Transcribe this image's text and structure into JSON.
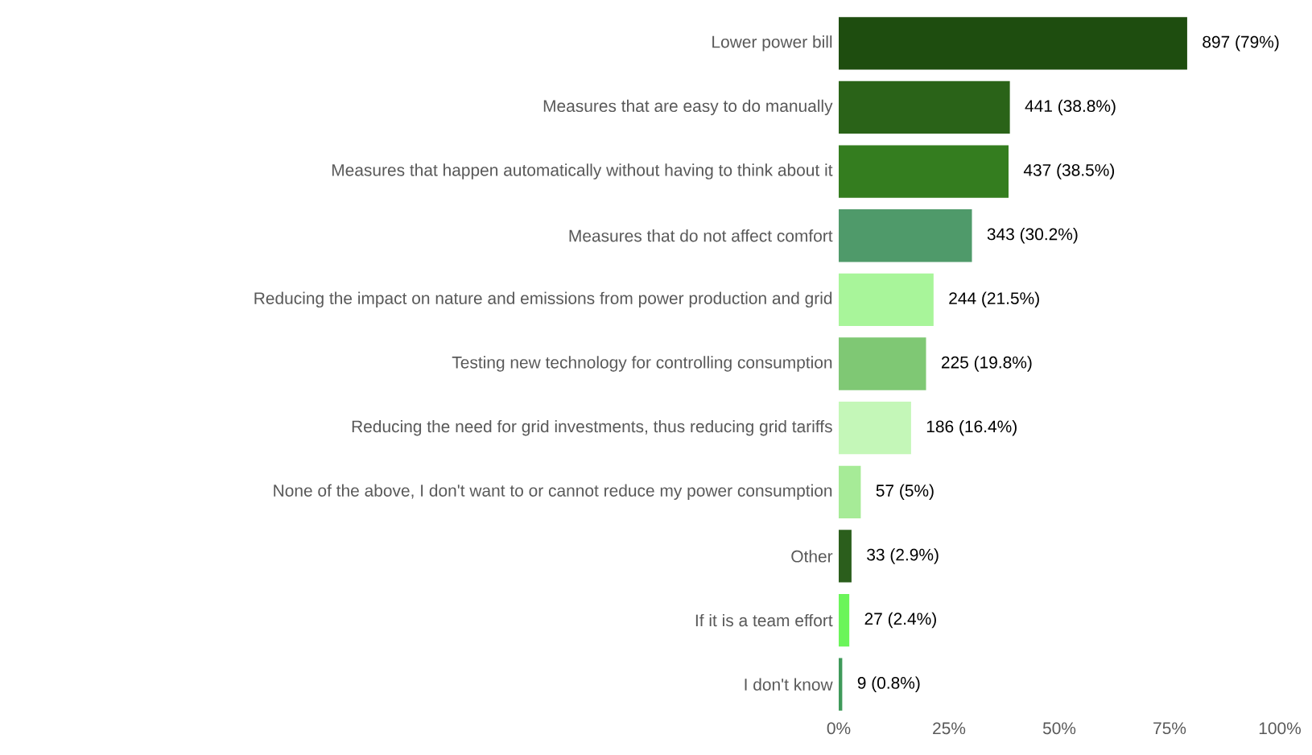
{
  "chart_data": {
    "type": "bar",
    "orientation": "horizontal",
    "categories": [
      "Lower power bill",
      "Measures that are easy to do manually",
      "Measures that happen automatically without having to think about it",
      "Measures that do not affect comfort",
      "Reducing the impact on nature and emissions from power production and grid",
      "Testing new technology for controlling consumption",
      "Reducing the need for grid investments, thus reducing grid tariffs",
      "None of the above, I don't want to or cannot reduce my power consumption",
      "Other",
      "If it is a team effort",
      "I don't know"
    ],
    "values": [
      79,
      38.8,
      38.5,
      30.2,
      21.5,
      19.8,
      16.4,
      5,
      2.9,
      2.4,
      0.8
    ],
    "value_labels": [
      "897 (79%)",
      "441 (38.8%)",
      "437 (38.5%)",
      "343 (30.2%)",
      "244 (21.5%)",
      "225 (19.8%)",
      "186 (16.4%)",
      "57 (5%)",
      "33 (2.9%)",
      "27 (2.4%)",
      "9 (0.8%)"
    ],
    "colors": [
      "#1e4d0f",
      "#2a6318",
      "#347d1f",
      "#4f9a6a",
      "#a8f59a",
      "#7fc874",
      "#c4f7b8",
      "#a6eb97",
      "#2b5e1c",
      "#6bf55a",
      "#3f9a5a"
    ],
    "xlim": [
      0,
      100
    ],
    "xticks": [
      {
        "value": 0,
        "label": "0%"
      },
      {
        "value": 25,
        "label": "25%"
      },
      {
        "value": 50,
        "label": "50%"
      },
      {
        "value": 75,
        "label": "75%"
      },
      {
        "value": 100,
        "label": "100%"
      }
    ]
  }
}
